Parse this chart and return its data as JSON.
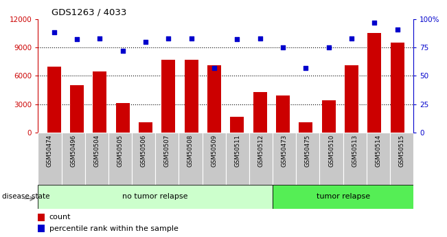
{
  "title": "GDS1263 / 4033",
  "categories": [
    "GSM50474",
    "GSM50496",
    "GSM50504",
    "GSM50505",
    "GSM50506",
    "GSM50507",
    "GSM50508",
    "GSM50509",
    "GSM50511",
    "GSM50512",
    "GSM50473",
    "GSM50475",
    "GSM50510",
    "GSM50513",
    "GSM50514",
    "GSM50515"
  ],
  "counts": [
    7000,
    5000,
    6500,
    3100,
    1100,
    7700,
    7700,
    7100,
    1700,
    4300,
    3900,
    1100,
    3400,
    7100,
    10500,
    9500
  ],
  "percentiles": [
    88,
    82,
    83,
    72,
    80,
    83,
    83,
    57,
    82,
    83,
    75,
    57,
    75,
    83,
    97,
    91
  ],
  "no_tumor_count": 10,
  "tumor_count": 6,
  "bar_color": "#cc0000",
  "dot_color": "#0000cc",
  "tick_area_color": "#c8c8c8",
  "no_tumor_color": "#ccffcc",
  "tumor_color": "#55ee55",
  "ylim_left": [
    0,
    12000
  ],
  "ylim_right": [
    0,
    100
  ],
  "yticks_left": [
    0,
    3000,
    6000,
    9000,
    12000
  ],
  "ytick_labels_left": [
    "0",
    "3000",
    "6000",
    "9000",
    "12000"
  ],
  "yticks_right": [
    0,
    25,
    50,
    75,
    100
  ],
  "ytick_labels_right": [
    "0",
    "25",
    "50",
    "75",
    "100%"
  ],
  "legend_count_label": "count",
  "legend_pct_label": "percentile rank within the sample",
  "disease_state_label": "disease state",
  "no_tumor_label": "no tumor relapse",
  "tumor_label": "tumor relapse"
}
